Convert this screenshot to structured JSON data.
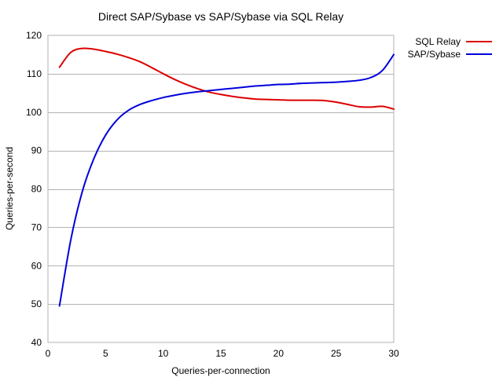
{
  "chart_data": {
    "type": "line",
    "title": "Direct SAP/Sybase vs SAP/Sybase via SQL Relay",
    "xlabel": "Queries-per-connection",
    "ylabel": "Queries-per-second",
    "xlim": [
      0,
      30
    ],
    "ylim": [
      40,
      120
    ],
    "xticks": [
      0,
      5,
      10,
      15,
      20,
      25,
      30
    ],
    "yticks": [
      40,
      50,
      60,
      70,
      80,
      90,
      100,
      110,
      120
    ],
    "grid": "horizontal",
    "legend_position": "top-right",
    "series": [
      {
        "name": "SQL Relay",
        "color": "#dd0000",
        "x": [
          1,
          2,
          3,
          4,
          5,
          6,
          7,
          8,
          9,
          10,
          11,
          12,
          13,
          14,
          15,
          16,
          17,
          18,
          19,
          20,
          21,
          22,
          23,
          24,
          25,
          26,
          27,
          28,
          29,
          30
        ],
        "y": [
          111.7,
          115.6,
          116.6,
          116.4,
          115.8,
          115.1,
          114.2,
          113.1,
          111.6,
          110.0,
          108.5,
          107.2,
          106.1,
          105.2,
          104.6,
          104.1,
          103.7,
          103.4,
          103.3,
          103.2,
          103.1,
          103.1,
          103.1,
          103.0,
          102.6,
          102.0,
          101.4,
          101.3,
          101.5,
          100.8
        ]
      },
      {
        "name": "SAP/Sybase",
        "color": "#0000dd",
        "x": [
          1,
          2,
          3,
          4,
          5,
          6,
          7,
          8,
          9,
          10,
          11,
          12,
          13,
          14,
          15,
          16,
          17,
          18,
          19,
          20,
          21,
          22,
          23,
          24,
          25,
          26,
          27,
          28,
          29,
          30
        ],
        "y": [
          49.5,
          67.0,
          79.5,
          88.0,
          94.0,
          98.0,
          100.5,
          102.0,
          103.0,
          103.8,
          104.4,
          104.9,
          105.3,
          105.6,
          105.9,
          106.2,
          106.5,
          106.8,
          107.0,
          107.2,
          107.3,
          107.5,
          107.6,
          107.7,
          107.8,
          108.0,
          108.3,
          109.0,
          110.8,
          115.0
        ]
      }
    ]
  }
}
